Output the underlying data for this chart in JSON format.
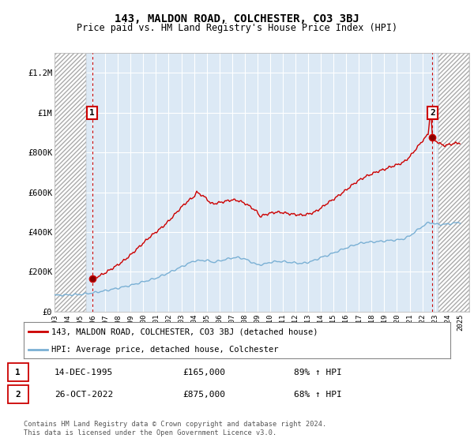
{
  "title": "143, MALDON ROAD, COLCHESTER, CO3 3BJ",
  "subtitle": "Price paid vs. HM Land Registry's House Price Index (HPI)",
  "title_fontsize": 10,
  "subtitle_fontsize": 8.5,
  "ylim": [
    0,
    1300000
  ],
  "yticks": [
    0,
    200000,
    400000,
    600000,
    800000,
    1000000,
    1200000
  ],
  "ytick_labels": [
    "£0",
    "£200K",
    "£400K",
    "£600K",
    "£800K",
    "£1M",
    "£1.2M"
  ],
  "xlim_start": 1993.0,
  "xlim_end": 2025.7,
  "hatch_left_end": 1995.5,
  "hatch_right_start": 2023.3,
  "background_color": "#ffffff",
  "plot_bg_color": "#dce9f5",
  "hatch_color": "#aaaaaa",
  "grid_color": "#ffffff",
  "red_line_color": "#cc0000",
  "blue_line_color": "#7ab0d4",
  "annotation_box_color": "#cc0000",
  "transaction1": {
    "date": "14-DEC-1995",
    "price": 165000,
    "hpi_change": "89% ↑ HPI",
    "label": "1",
    "x": 1995.96
  },
  "transaction2": {
    "date": "26-OCT-2022",
    "price": 875000,
    "hpi_change": "68% ↑ HPI",
    "label": "2",
    "x": 2022.8
  },
  "legend_line1": "143, MALDON ROAD, COLCHESTER, CO3 3BJ (detached house)",
  "legend_line2": "HPI: Average price, detached house, Colchester",
  "footer1": "Contains HM Land Registry data © Crown copyright and database right 2024.",
  "footer2": "This data is licensed under the Open Government Licence v3.0.",
  "xtick_years": [
    1993,
    1994,
    1995,
    1996,
    1997,
    1998,
    1999,
    2000,
    2001,
    2002,
    2003,
    2004,
    2005,
    2006,
    2007,
    2008,
    2009,
    2010,
    2011,
    2012,
    2013,
    2014,
    2015,
    2016,
    2017,
    2018,
    2019,
    2020,
    2021,
    2022,
    2023,
    2024,
    2025
  ]
}
